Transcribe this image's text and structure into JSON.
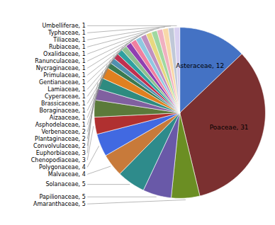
{
  "chart_data": {
    "type": "pie",
    "categories": [
      "Asteraceae",
      "Poaceae",
      "Amaranthaceae",
      "Papilionaceae",
      "Solanaceae",
      "Malvaceae",
      "Polygonaceae",
      "Chenopodiaceae",
      "Euphorbiaceae",
      "Convolvulaceae",
      "Plantaginaceae",
      "Verbenaceae",
      "Asphodelaceae",
      "Aizaaceae",
      "Boraginaceae",
      "Brassicaceae",
      "Cyperaceae",
      "Lamiaceae",
      "Gentianaceae",
      "Primulaceae",
      "Nycraginaceae",
      "Ranunculaceae",
      "Oxalidaceae",
      "Rubiaceae",
      "Tiliaceae",
      "Typhaceae",
      "Umbelliferae"
    ],
    "values": [
      12,
      31,
      5,
      5,
      5,
      4,
      4,
      3,
      3,
      2,
      2,
      2,
      1,
      1,
      1,
      1,
      1,
      1,
      1,
      1,
      1,
      1,
      1,
      1,
      1,
      1,
      1
    ],
    "colors": [
      "#4472C4",
      "#7B3030",
      "#6B8E23",
      "#6959A8",
      "#2E8B8B",
      "#C87A3A",
      "#4169E1",
      "#B03030",
      "#5B7A3A",
      "#8060A0",
      "#2E8B80",
      "#E08020",
      "#3A7A50",
      "#5090B0",
      "#C03050",
      "#30A0A0",
      "#90C090",
      "#9040B0",
      "#F080A0",
      "#90C8E0",
      "#C090C0",
      "#E8D880",
      "#A0D8A0",
      "#F0B0C0",
      "#F8D8A8",
      "#C0C8D8",
      "#D8D0F0"
    ],
    "data_labels": true,
    "value_labels": [
      "Asteraceae, 12",
      "Poaceae, 31",
      "Amaranthaceae, 5",
      "Papilionaceae, 5",
      "Solanaceae, 5",
      "Malvaceae, 4",
      "Polygonaceae, 4",
      "Chenopodiaceae, 3",
      "Euphorbiaceae, 3",
      "Convolvulaceae, 2",
      "Plantaginaceae, 2",
      "Verbenaceae, 2",
      "Asphodelaceae, 1",
      "Aizaaceae, 1",
      "Boraginaceae, 1",
      "Brassicaceae, 1",
      "Cyperaceae, 1",
      "Lamiaceae, 1",
      "Gentianaceae, 1",
      "Primulaceae, 1",
      "Nycraginaceae, 1",
      "Ranunculaceae, 1",
      "Oxalidaceae, 1",
      "Rubiaceae, 1",
      "Tiliaceae, 1",
      "Typhaceae, 1",
      "Umbelliferae, 1"
    ]
  }
}
